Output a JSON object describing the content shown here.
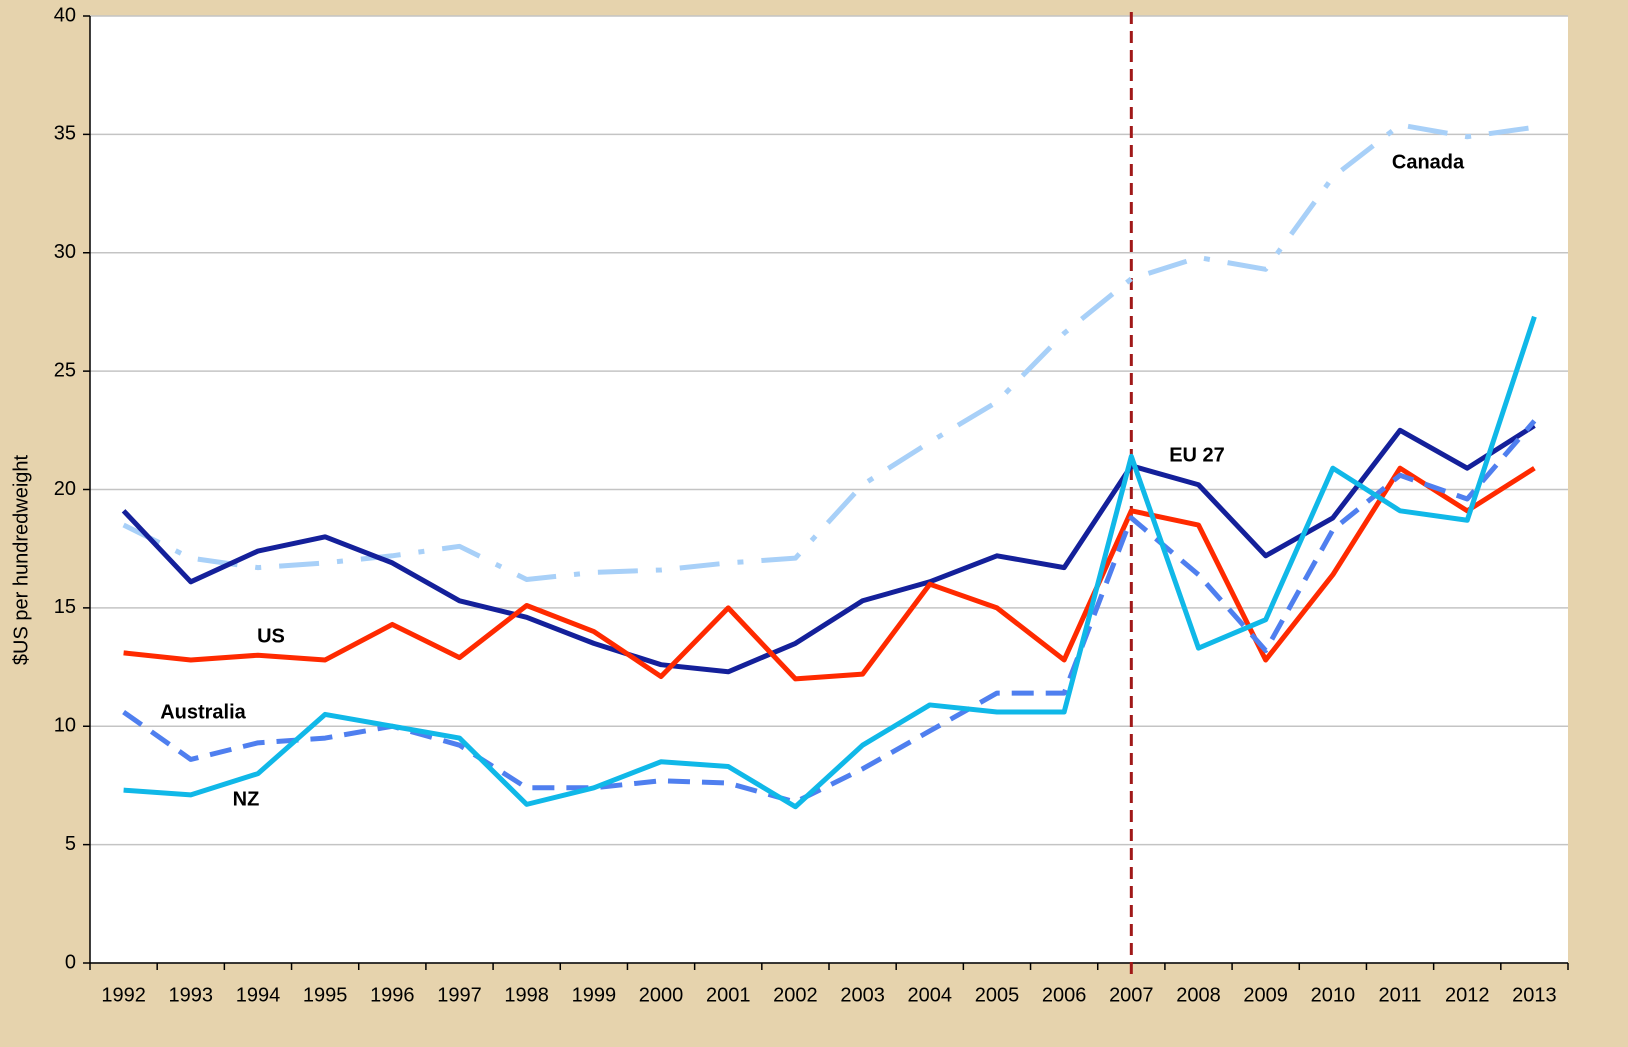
{
  "chart_data": {
    "type": "line",
    "y_label": "$US per hundredweight",
    "categories": [
      "1992",
      "1993",
      "1994",
      "1995",
      "1996",
      "1997",
      "1998",
      "1999",
      "2000",
      "2001",
      "2002",
      "2003",
      "2004",
      "2005",
      "2006",
      "2007",
      "2008",
      "2009",
      "2010",
      "2011",
      "2012",
      "2013"
    ],
    "ylim": [
      0,
      40
    ],
    "yticks": [
      0,
      5,
      10,
      15,
      20,
      25,
      30,
      35,
      40
    ],
    "grid": true,
    "reference_line": "2007",
    "reference_color": "#a01818",
    "series": [
      {
        "name": "Canada",
        "color": "#a8d0f8",
        "style": "dashdot",
        "values": [
          18.5,
          17.1,
          16.7,
          16.9,
          17.2,
          17.6,
          16.2,
          16.5,
          16.6,
          16.9,
          17.1,
          20.2,
          22.0,
          23.7,
          26.6,
          28.9,
          29.8,
          29.3,
          33.2,
          35.4,
          34.9,
          35.3
        ]
      },
      {
        "name": "EU 27",
        "color": "#14209a",
        "style": "solid",
        "values": [
          19.1,
          16.1,
          17.4,
          18.0,
          16.9,
          15.3,
          14.6,
          13.5,
          12.6,
          12.3,
          13.5,
          15.3,
          16.1,
          17.2,
          16.7,
          21.0,
          20.2,
          17.2,
          18.8,
          22.5,
          20.9,
          22.7
        ]
      },
      {
        "name": "US",
        "color": "#ff2a00",
        "style": "solid",
        "values": [
          13.1,
          12.8,
          13.0,
          12.8,
          14.3,
          12.9,
          15.1,
          14.0,
          12.1,
          15.0,
          12.0,
          12.2,
          16.0,
          15.0,
          12.8,
          19.1,
          18.5,
          12.8,
          16.4,
          20.9,
          19.1,
          20.9
        ]
      },
      {
        "name": "Australia",
        "color": "#4f7fef",
        "style": "dashed",
        "values": [
          10.6,
          8.6,
          9.3,
          9.5,
          10.0,
          9.2,
          7.4,
          7.4,
          7.7,
          7.6,
          6.8,
          8.2,
          9.8,
          11.4,
          11.4,
          18.8,
          16.4,
          13.2,
          18.3,
          20.6,
          19.6,
          22.9
        ]
      },
      {
        "name": "NZ",
        "color": "#10b8e8",
        "style": "solid",
        "values": [
          7.3,
          7.1,
          8.0,
          10.5,
          10.0,
          9.5,
          6.7,
          7.4,
          8.5,
          8.3,
          6.6,
          9.2,
          10.9,
          10.6,
          10.6,
          21.4,
          13.3,
          14.5,
          20.9,
          19.1,
          18.7,
          27.3
        ]
      }
    ]
  }
}
